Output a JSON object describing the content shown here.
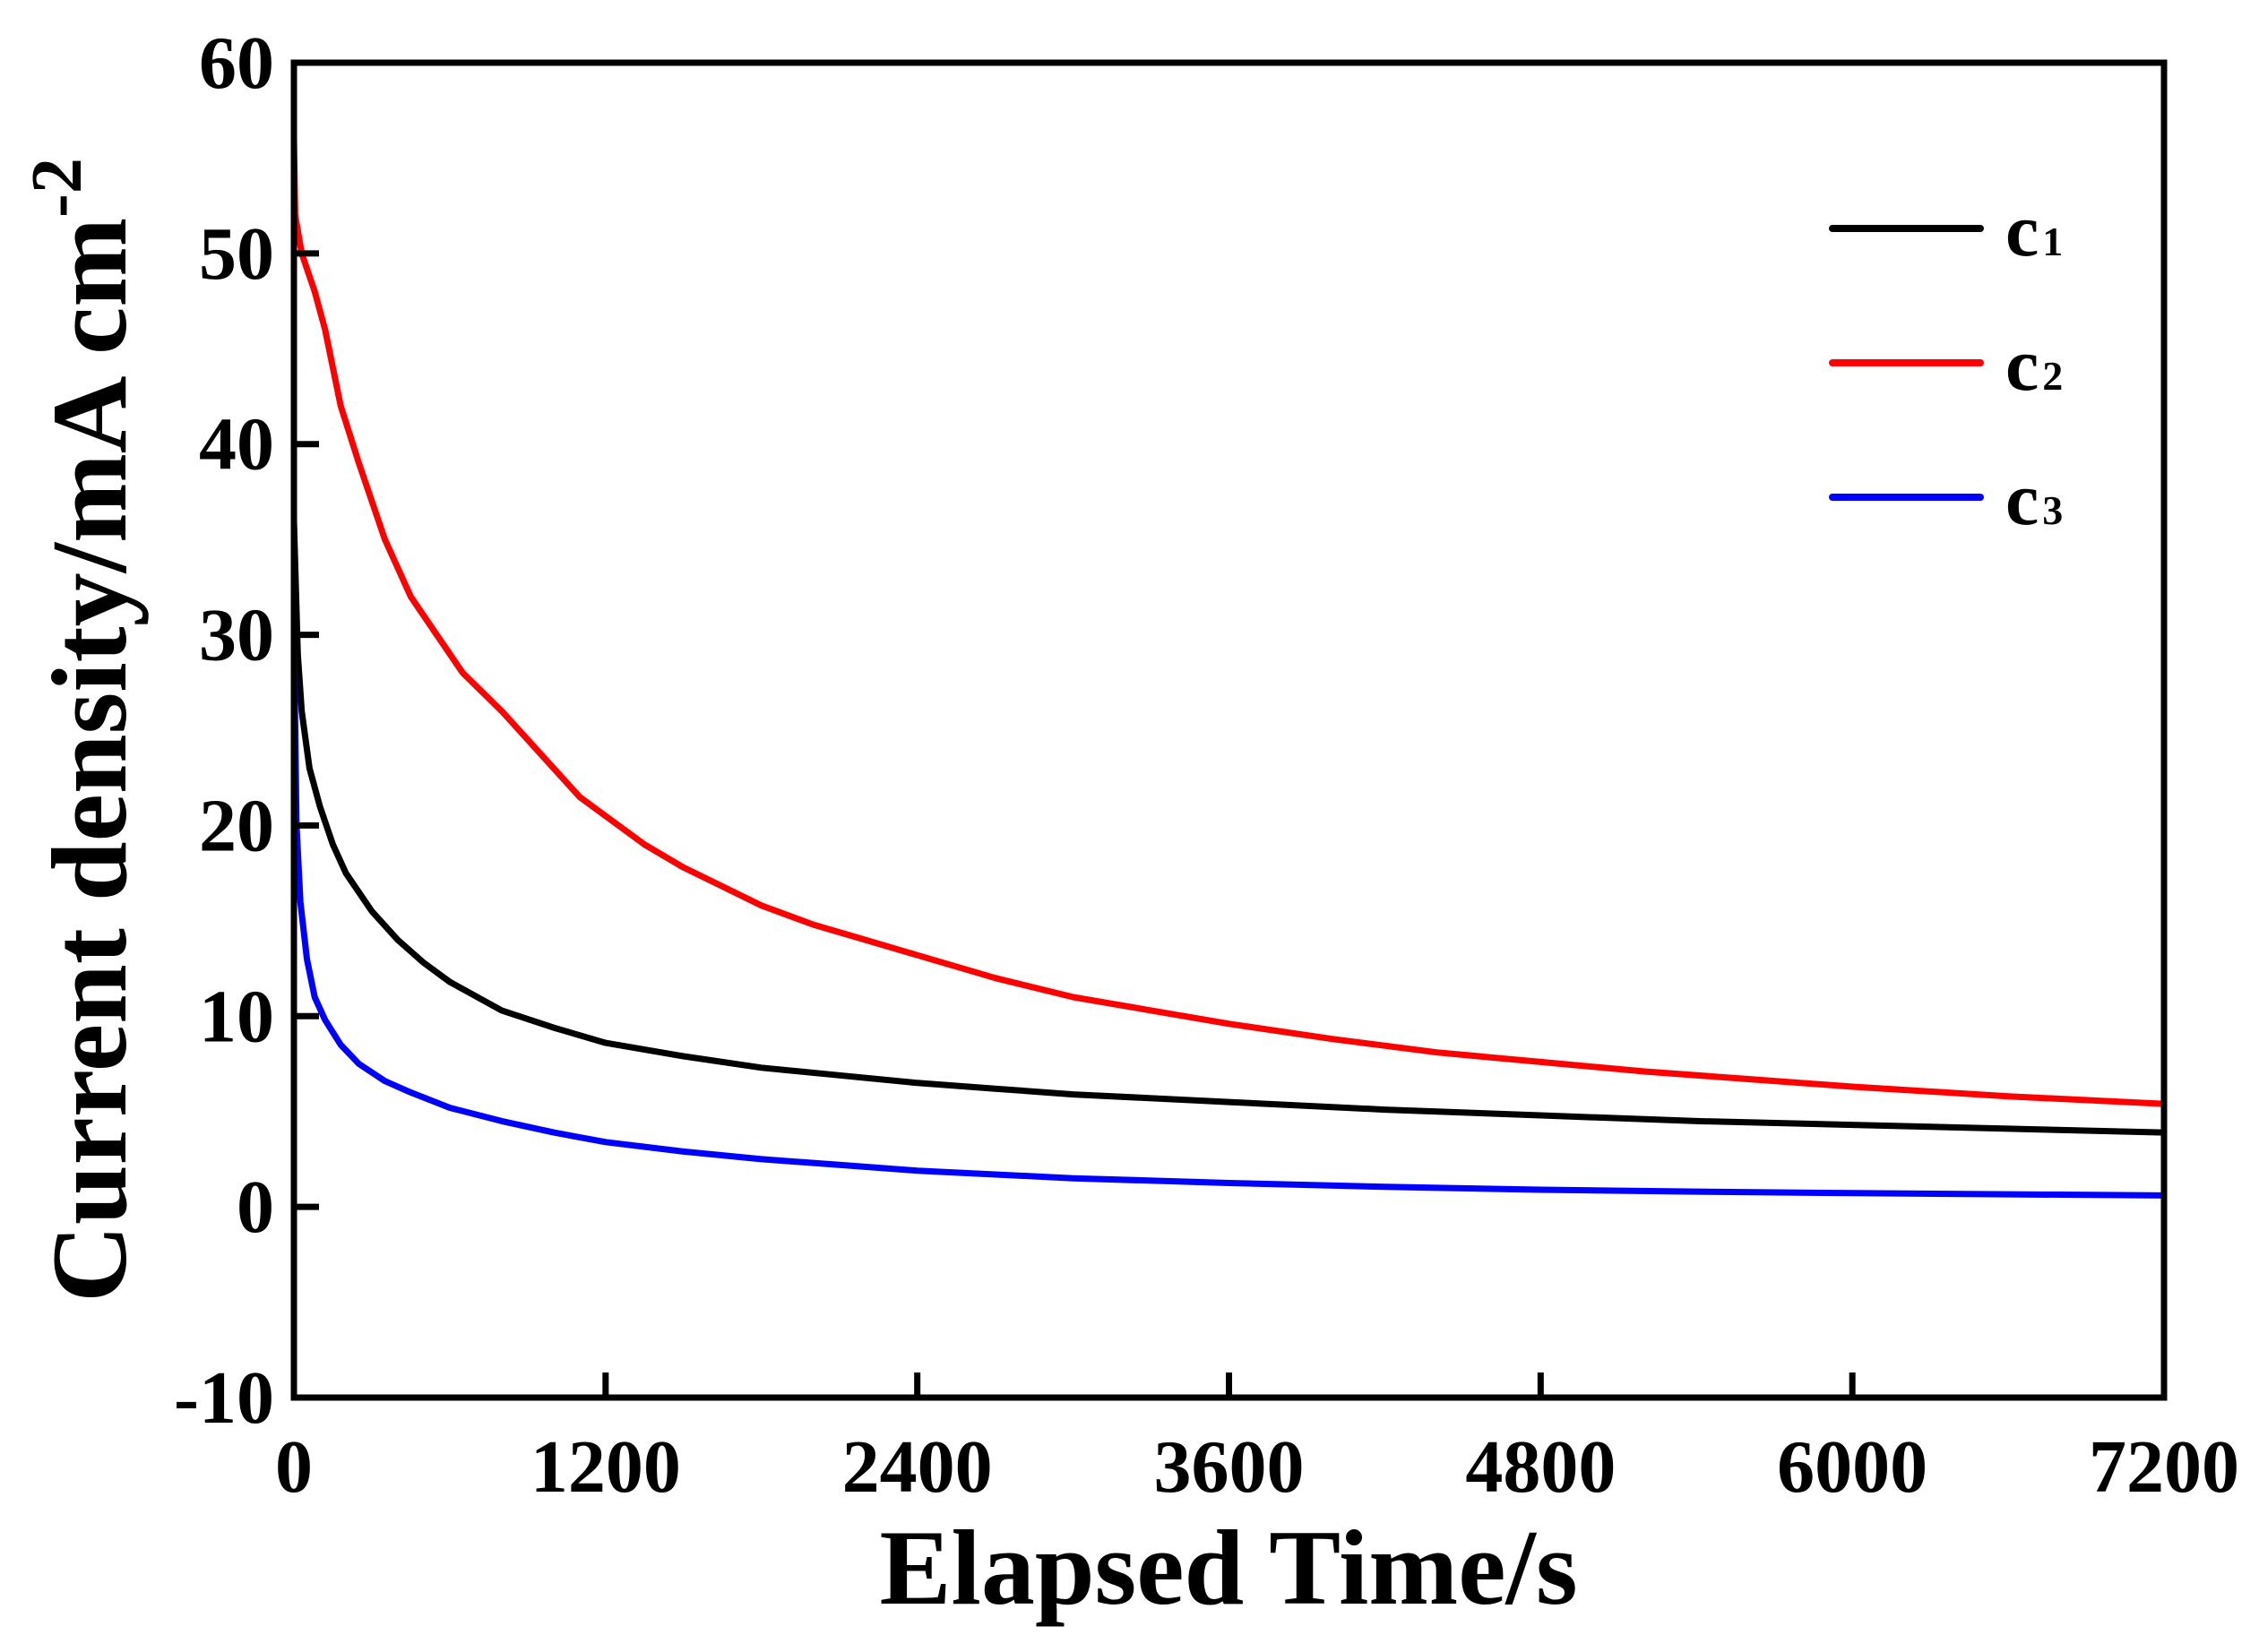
{
  "chart_data": {
    "type": "line",
    "title": "",
    "xlabel": "Elapsed Time/s",
    "ylabel": "Current density/mA cm",
    "ylabel_superscript": "-2",
    "xlim": [
      0,
      7200
    ],
    "ylim": [
      -10,
      60
    ],
    "xticks": [
      0,
      1200,
      2400,
      3600,
      4800,
      6000,
      7200
    ],
    "yticks": [
      -10,
      0,
      10,
      20,
      30,
      40,
      50,
      60
    ],
    "grid": false,
    "legend_position": "top-right",
    "series": [
      {
        "name": "c1",
        "label_main": "c",
        "label_sub": "1",
        "color": "#000000",
        "points": [
          [
            0,
            36
          ],
          [
            15,
            29
          ],
          [
            30,
            26
          ],
          [
            60,
            23
          ],
          [
            100,
            21
          ],
          [
            150,
            19
          ],
          [
            200,
            17.5
          ],
          [
            300,
            15.5
          ],
          [
            400,
            14
          ],
          [
            500,
            12.8
          ],
          [
            600,
            11.8
          ],
          [
            800,
            10.3
          ],
          [
            1000,
            9.4
          ],
          [
            1200,
            8.6
          ],
          [
            1500,
            7.9
          ],
          [
            1800,
            7.3
          ],
          [
            2100,
            6.9
          ],
          [
            2400,
            6.5
          ],
          [
            2700,
            6.2
          ],
          [
            3000,
            5.9
          ],
          [
            3600,
            5.5
          ],
          [
            4200,
            5.1
          ],
          [
            4800,
            4.8
          ],
          [
            5400,
            4.5
          ],
          [
            6000,
            4.3
          ],
          [
            6600,
            4.1
          ],
          [
            7200,
            3.9
          ]
        ]
      },
      {
        "name": "c2",
        "label_main": "c",
        "label_sub": "2",
        "color": "#ff0000",
        "points": [
          [
            0,
            56
          ],
          [
            5,
            52
          ],
          [
            30,
            50
          ],
          [
            80,
            48
          ],
          [
            120,
            46
          ],
          [
            180,
            42
          ],
          [
            250,
            39
          ],
          [
            350,
            35
          ],
          [
            450,
            32
          ],
          [
            550,
            30
          ],
          [
            650,
            28
          ],
          [
            800,
            26
          ],
          [
            900,
            24.5
          ],
          [
            1000,
            23
          ],
          [
            1100,
            21.5
          ],
          [
            1200,
            20.5
          ],
          [
            1350,
            19
          ],
          [
            1500,
            17.8
          ],
          [
            1650,
            16.8
          ],
          [
            1800,
            15.8
          ],
          [
            2000,
            14.8
          ],
          [
            2200,
            14
          ],
          [
            2400,
            13.2
          ],
          [
            2700,
            12
          ],
          [
            3000,
            11
          ],
          [
            3300,
            10.3
          ],
          [
            3600,
            9.6
          ],
          [
            4000,
            8.8
          ],
          [
            4400,
            8.1
          ],
          [
            4800,
            7.6
          ],
          [
            5200,
            7.1
          ],
          [
            5600,
            6.7
          ],
          [
            6000,
            6.3
          ],
          [
            6600,
            5.8
          ],
          [
            7200,
            5.4
          ]
        ]
      },
      {
        "name": "c3",
        "label_main": "c",
        "label_sub": "3",
        "color": "#0000ff",
        "points": [
          [
            0,
            30
          ],
          [
            10,
            20
          ],
          [
            25,
            16
          ],
          [
            50,
            13
          ],
          [
            80,
            11
          ],
          [
            120,
            9.8
          ],
          [
            180,
            8.5
          ],
          [
            250,
            7.5
          ],
          [
            350,
            6.6
          ],
          [
            450,
            6
          ],
          [
            600,
            5.2
          ],
          [
            800,
            4.5
          ],
          [
            1000,
            3.9
          ],
          [
            1200,
            3.4
          ],
          [
            1500,
            2.9
          ],
          [
            1800,
            2.5
          ],
          [
            2100,
            2.2
          ],
          [
            2400,
            1.9
          ],
          [
            3000,
            1.5
          ],
          [
            3600,
            1.25
          ],
          [
            4200,
            1.05
          ],
          [
            4800,
            0.9
          ],
          [
            5400,
            0.8
          ],
          [
            6000,
            0.72
          ],
          [
            6600,
            0.66
          ],
          [
            7200,
            0.6
          ]
        ]
      }
    ]
  }
}
